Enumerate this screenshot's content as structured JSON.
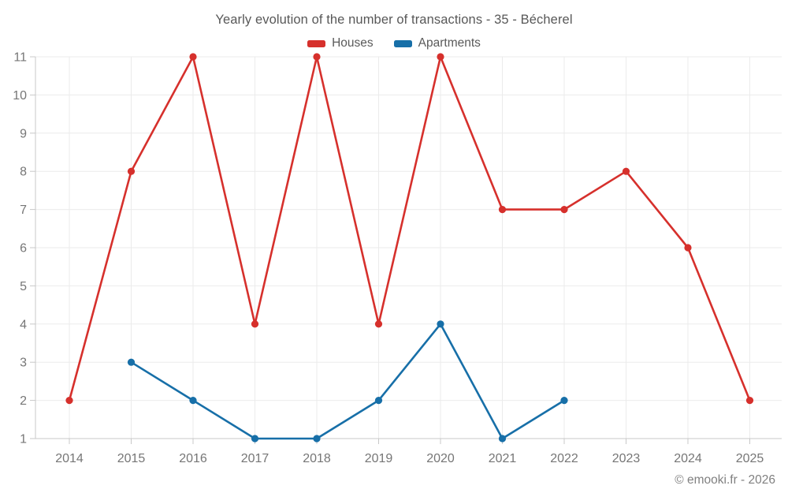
{
  "footer": "© emooki.fr - 2026",
  "colors": {
    "houses": "#d6302c",
    "apartments": "#176fa8",
    "gridline": "#ebebeb",
    "axis": "#c8c8c8",
    "title_text": "#585858",
    "axis_text": "#767676",
    "footer_text": "#808080"
  },
  "chart_data": {
    "type": "line",
    "title": "Yearly evolution of the number of transactions - 35 - Bécherel",
    "x_ticks": [
      2014,
      2015,
      2016,
      2017,
      2018,
      2019,
      2020,
      2021,
      2022,
      2023,
      2024,
      2025
    ],
    "y_ticks": [
      1,
      2,
      3,
      4,
      5,
      6,
      7,
      8,
      9,
      10,
      11
    ],
    "ylim": [
      1,
      11
    ],
    "grid": true,
    "legend_position": "top-center",
    "series": [
      {
        "name": "Houses",
        "color": "#d6302c",
        "x": [
          2014,
          2015,
          2016,
          2017,
          2018,
          2019,
          2020,
          2021,
          2022,
          2023,
          2024,
          2025
        ],
        "values": [
          2,
          8,
          11,
          4,
          11,
          4,
          11,
          7,
          7,
          8,
          6,
          2
        ]
      },
      {
        "name": "Apartments",
        "color": "#176fa8",
        "x": [
          2015,
          2016,
          2017,
          2018,
          2019,
          2020,
          2021,
          2022
        ],
        "values": [
          3,
          2,
          1,
          1,
          2,
          4,
          1,
          2
        ]
      }
    ]
  }
}
